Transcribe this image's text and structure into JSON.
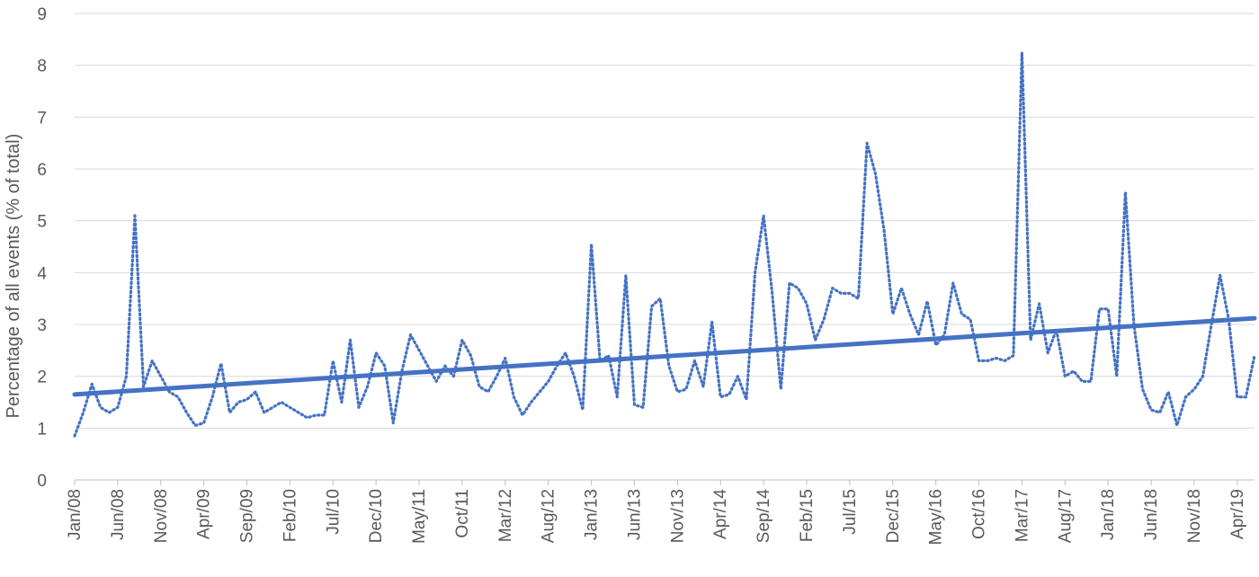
{
  "chart_data": {
    "type": "line",
    "title": "",
    "xlabel": "",
    "ylabel": "Percentage of all events (% of total)",
    "ylim": [
      0,
      9
    ],
    "yticks": [
      "0",
      "1",
      "2",
      "3",
      "4",
      "5",
      "6",
      "7",
      "8",
      "9"
    ],
    "grid": true,
    "legend": "none",
    "x_tick_labels": [
      "Jan/08",
      "Jun/08",
      "Nov/08",
      "Apr/09",
      "Sep/09",
      "Feb/10",
      "Jul/10",
      "Dec/10",
      "May/11",
      "Oct/11",
      "Mar/12",
      "Aug/12",
      "Jan/13",
      "Jun/13",
      "Nov/13",
      "Apr/14",
      "Sep/14",
      "Feb/15",
      "Jul/15",
      "Dec/15",
      "May/16",
      "Oct/16",
      "Mar/17",
      "Aug/17",
      "Jan/18",
      "Jun/18",
      "Nov/18",
      "Apr/19"
    ],
    "x_start": "Jan/08",
    "x_end": "Jun/19",
    "series": [
      {
        "type": "dotted-line",
        "color": "#4472c4",
        "values": [
          0.85,
          1.3,
          1.85,
          1.4,
          1.3,
          1.4,
          2.0,
          5.1,
          1.8,
          2.3,
          2.0,
          1.7,
          1.6,
          1.3,
          1.05,
          1.1,
          1.6,
          2.25,
          1.3,
          1.5,
          1.55,
          1.7,
          1.3,
          1.4,
          1.5,
          1.4,
          1.3,
          1.2,
          1.25,
          1.25,
          2.3,
          1.5,
          2.7,
          1.4,
          1.8,
          2.45,
          2.2,
          1.1,
          2.1,
          2.8,
          2.5,
          2.2,
          1.9,
          2.2,
          2.0,
          2.7,
          2.4,
          1.8,
          1.7,
          2.0,
          2.35,
          1.6,
          1.25,
          1.5,
          1.7,
          1.9,
          2.2,
          2.45,
          2.0,
          1.35,
          4.55,
          2.3,
          2.4,
          1.6,
          3.95,
          1.45,
          1.4,
          3.35,
          3.5,
          2.2,
          1.7,
          1.75,
          2.3,
          1.8,
          3.05,
          1.6,
          1.65,
          2.0,
          1.55,
          4.0,
          5.1,
          3.6,
          1.75,
          3.8,
          3.7,
          3.4,
          2.7,
          3.1,
          3.7,
          3.6,
          3.6,
          3.5,
          6.5,
          5.9,
          4.8,
          3.2,
          3.7,
          3.2,
          2.8,
          3.45,
          2.6,
          2.8,
          3.8,
          3.2,
          3.1,
          2.3,
          2.3,
          2.35,
          2.3,
          2.4,
          8.25,
          2.7,
          3.4,
          2.45,
          2.9,
          2.0,
          2.1,
          1.9,
          1.9,
          3.3,
          3.3,
          2.0,
          5.55,
          3.0,
          1.75,
          1.35,
          1.3,
          1.7,
          1.05,
          1.6,
          1.75,
          2.0,
          3.0,
          3.95,
          3.1,
          1.6,
          1.6,
          2.4
        ]
      },
      {
        "type": "trendline",
        "color": "#4472c4",
        "start_value": 1.65,
        "end_value": 3.12
      }
    ]
  }
}
